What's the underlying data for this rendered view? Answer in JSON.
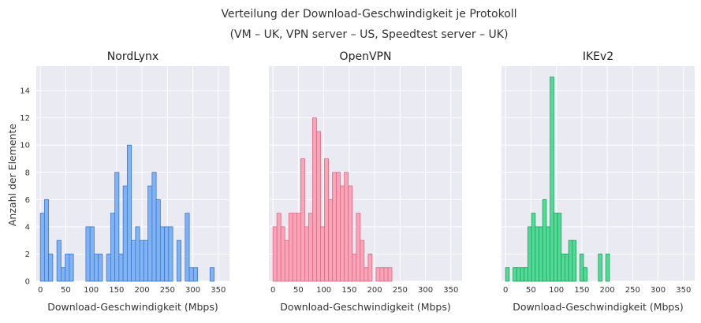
{
  "chart_data": {
    "type": "histogram",
    "title": "Verteilung der Download-Geschwindigkeit je Protokoll",
    "subtitle": "(VM – UK, VPN server – US, Speedtest server – UK)",
    "ylabel": "Anzahl der Elemente",
    "xlim": [
      -8,
      372
    ],
    "ylim": [
      0,
      15.8
    ],
    "x_ticks": [
      0,
      50,
      100,
      150,
      200,
      250,
      300,
      350
    ],
    "y_ticks": [
      0,
      2,
      4,
      6,
      8,
      10,
      12,
      14
    ],
    "grid": true,
    "panels": [
      {
        "name": "NordLynx",
        "xlabel": "Download-Geschwindigkeit (Mbps)",
        "color": "#7fb3f5",
        "edge_color": "#3f78c9",
        "bin_start": 0,
        "bin_width": 8.14,
        "counts": [
          5,
          6,
          2,
          0,
          3,
          1,
          2,
          2,
          0,
          0,
          0,
          4,
          4,
          2,
          2,
          0,
          2,
          5,
          8,
          2,
          7,
          10,
          3,
          4,
          3,
          3,
          7,
          8,
          6,
          4,
          4,
          4,
          0,
          3,
          0,
          5,
          1,
          1,
          0,
          0,
          0,
          1
        ]
      },
      {
        "name": "OpenVPN",
        "xlabel": "Download-Geschwindigkeit (Mbps)",
        "color": "#fba4b8",
        "edge_color": "#d96b86",
        "bin_start": 0,
        "bin_width": 7.8,
        "counts": [
          4,
          5,
          4,
          3,
          5,
          5,
          5,
          9,
          4,
          5,
          12,
          11,
          4,
          9,
          6,
          8,
          8,
          7,
          8,
          7,
          2,
          5,
          3,
          1,
          2,
          0,
          1,
          1,
          1,
          1
        ]
      },
      {
        "name": "IKEv2",
        "xlabel": "Download-Geschwindigkeit (Mbps)",
        "color": "#52db96",
        "edge_color": "#1f9e5a",
        "bin_start": 0,
        "bin_width": 7.3,
        "counts": [
          1,
          0,
          1,
          1,
          1,
          1,
          4,
          5,
          4,
          4,
          6,
          4,
          15,
          5,
          5,
          2,
          2,
          3,
          3,
          0,
          2,
          1,
          0,
          0,
          0,
          2,
          0,
          2,
          0,
          0,
          0,
          0
        ]
      }
    ]
  }
}
